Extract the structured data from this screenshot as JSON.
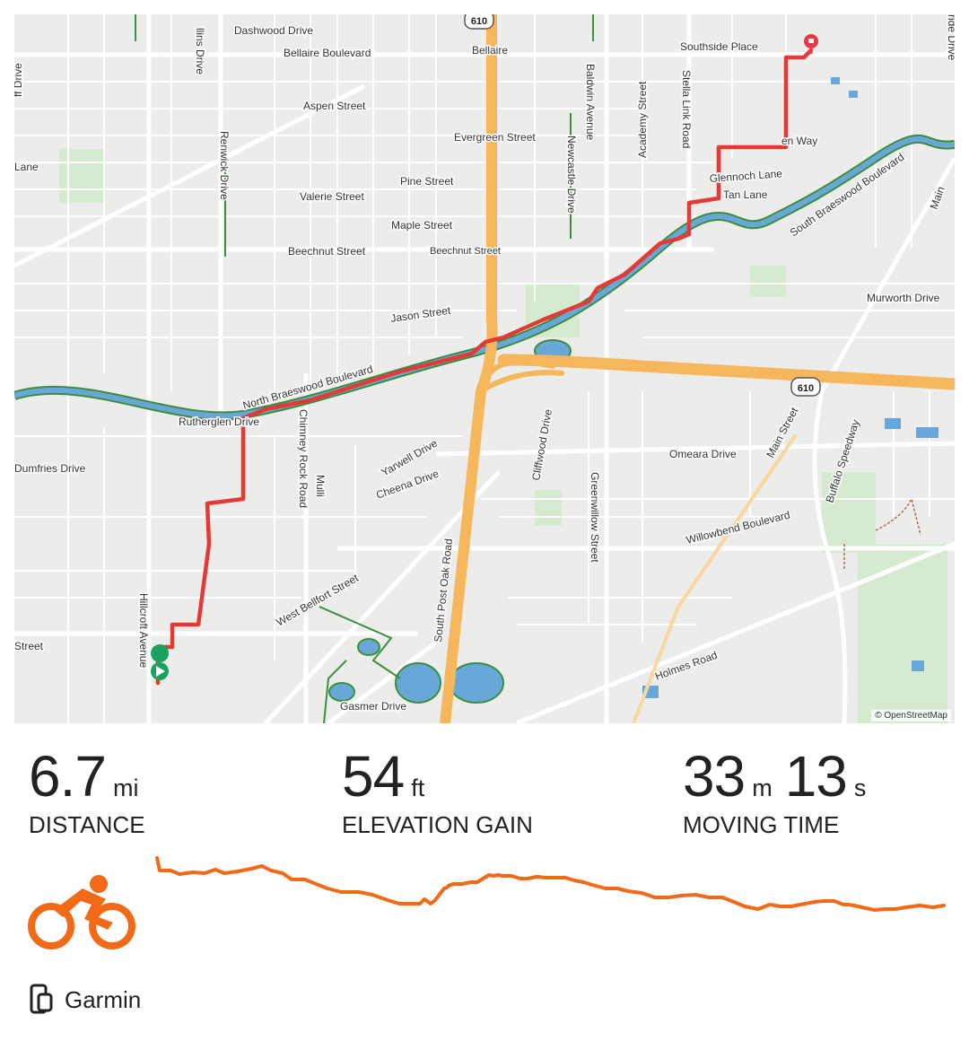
{
  "map": {
    "attribution": "© OpenStreetMap",
    "highway_shield": "610",
    "streets": {
      "dashwood": "Dashwood Drive",
      "bellaire_blvd": "Bellaire Boulevard",
      "bellaire": "Bellaire",
      "southside": "Southside Place",
      "aspen": "Aspen Street",
      "evergreen": "Evergreen Street",
      "pine": "Pine Street",
      "valerie": "Valerie Street",
      "maple": "Maple Street",
      "beechnut_w": "Beechnut Street",
      "beechnut_e": "Beechnut Street",
      "jason": "Jason Street",
      "north_braes": "North Braeswood Boulevard",
      "rutherglen": "Rutherglen Drive",
      "dumfries": "Dumfries Drive",
      "yarwell": "Yarwell Drive",
      "cheena": "Cheena Drive",
      "west_bellfort": "West Bellfort Street",
      "gasmer": "Gasmer Drive",
      "omeara": "Omeara Drive",
      "willowbend": "Willowbend Boulevard",
      "holmes": "Holmes Road",
      "murworth": "Murworth Drive",
      "glennoch": "Glennoch Lane",
      "tan_lane": "Tan Lane",
      "south_braes": "South Braeswood Boulevard",
      "street_left": "Street",
      "lane_left": "Lane",
      "ridge_way": "en Way",
      "renwick": "Renwick Drive",
      "collins": "llins Drive",
      "chimney_rock": "Chimney Rock Road",
      "hillcroft": "Hillcroft Avenue",
      "south_post_oak": "South Post Oak Road",
      "cliffwood": "Cliffwood Drive",
      "greenwillow": "Greenwillow Street",
      "newcastle": "Newcastle Drive",
      "baldwin": "Baldwin Avenue",
      "academy": "Academy Street",
      "stella_link": "Stella Link Road",
      "main_street": "Main Street",
      "buffalo_speedway": "Buffalo Speedway",
      "mullins": "Mulli",
      "ff_drive": "ff Drive",
      "ride_drive": "ride Drive",
      "main_right": "Main"
    }
  },
  "stats": {
    "distance": {
      "value": "6.7",
      "unit": "mi",
      "label": "DISTANCE"
    },
    "elevation": {
      "value": "54",
      "unit": "ft",
      "label": "ELEVATION GAIN"
    },
    "time": {
      "minutes": "33",
      "minutes_unit": "m",
      "seconds": "13",
      "seconds_unit": "s",
      "label": "MOVING TIME"
    }
  },
  "activity": {
    "icon": "cycling-icon",
    "source_icon": "device-sync-icon",
    "source": "Garmin"
  },
  "colors": {
    "route": "#e53935",
    "elevation": "#f06a18",
    "freeway": "#f6b65c",
    "bayou": "#6aa7d9",
    "trail": "#3a8f3e",
    "start_marker": "#1aa260",
    "end_marker": "#e53946"
  }
}
